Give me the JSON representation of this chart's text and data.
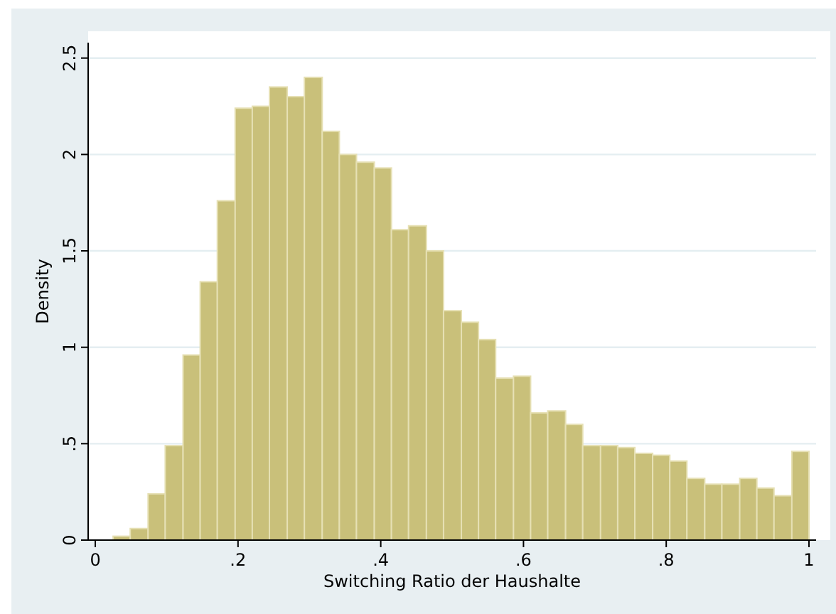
{
  "chart_data": {
    "type": "histogram",
    "xlabel": "Switching Ratio der Haushalte",
    "ylabel": "Density",
    "color": "#c9c07a",
    "bins": [
      0.025,
      0.049,
      0.074,
      0.098,
      0.123,
      0.147,
      0.171,
      0.196,
      0.22,
      0.244,
      0.269,
      0.293,
      0.318,
      0.342,
      0.366,
      0.391,
      0.415,
      0.439,
      0.464,
      0.488,
      0.513,
      0.537,
      0.561,
      0.586,
      0.61,
      0.634,
      0.659,
      0.683,
      0.708,
      0.732,
      0.756,
      0.781,
      0.805,
      0.829,
      0.854,
      0.878,
      0.903,
      0.927,
      0.951,
      0.976,
      1
    ],
    "values": [
      0.02,
      0.06,
      0.24,
      0.49,
      0.96,
      1.34,
      1.76,
      2.24,
      2.25,
      2.35,
      2.3,
      2.4,
      2.12,
      2.0,
      1.96,
      1.93,
      1.61,
      1.63,
      1.5,
      1.19,
      1.13,
      1.04,
      0.84,
      0.85,
      0.66,
      0.67,
      0.6,
      0.49,
      0.49,
      0.48,
      0.45,
      0.44,
      0.41,
      0.32,
      0.29,
      0.29,
      0.32,
      0.27,
      0.23,
      0.46
    ],
    "xlim": [
      -0.01,
      1.01
    ],
    "ylim": [
      0,
      2.58
    ],
    "xticks": [
      0,
      {
        "value": 0.2,
        "label": ".2"
      },
      {
        "value": 0.4,
        "label": ".4"
      },
      {
        "value": 0.6,
        "label": ".6"
      },
      {
        "value": 0.8,
        "label": ".8"
      },
      1
    ],
    "yticks": [
      0,
      {
        "value": 0.5,
        "label": ".5"
      },
      1,
      {
        "value": 1.5,
        "label": "1.5"
      },
      2,
      {
        "value": 2.5,
        "label": "2.5"
      }
    ],
    "grid": "y"
  }
}
